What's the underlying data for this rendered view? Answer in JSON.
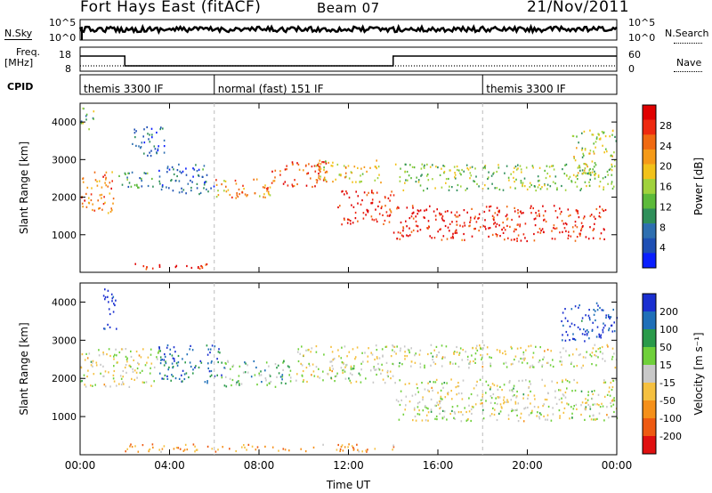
{
  "header": {
    "station": "Fort Hays East (fitACF)",
    "beam": "Beam 07",
    "date": "21/Nov/2011"
  },
  "strips": {
    "nsky_label": "N.Sky",
    "nsky_ticks": [
      "10^5",
      "10^0"
    ],
    "nsearch_label": "N.Search",
    "freq_label_1": "Freq.",
    "freq_label_2": "[MHz]",
    "freq_ticks": [
      "18",
      "8"
    ],
    "nave_label": "Nave",
    "nave_ticks": [
      "60",
      "0"
    ],
    "cpid_label": "CPID",
    "cpid_segments": [
      {
        "label": "themis 3300 IF",
        "start": 0,
        "end": 6
      },
      {
        "label": "normal (fast) 151 IF",
        "start": 6,
        "end": 18
      },
      {
        "label": "themis 3300 IF",
        "start": 18,
        "end": 24
      }
    ]
  },
  "chart_data": [
    {
      "type": "heatmap",
      "name": "power",
      "xlabel": "Time UT",
      "ylabel": "Slant Range [km]",
      "xlim": [
        0,
        24
      ],
      "ylim": [
        0,
        4500
      ],
      "x_ticks": [
        "00:00",
        "04:00",
        "08:00",
        "12:00",
        "16:00",
        "20:00",
        "00:00"
      ],
      "y_ticks": [
        1000,
        2000,
        3000,
        4000
      ],
      "colorbar": {
        "label": "Power [dB]",
        "ticks": [
          "4",
          "8",
          "12",
          "16",
          "20",
          "24",
          "28"
        ],
        "colors": [
          "#0a1fff",
          "#1e4fb4",
          "#2e6fb0",
          "#2f8f5a",
          "#5cba3a",
          "#a0d23c",
          "#f2c21a",
          "#f59a18",
          "#f06a12",
          "#ee2a10",
          "#e00000"
        ]
      },
      "regions": [
        {
          "t0": 0.0,
          "t1": 1.5,
          "r0": 1600,
          "r1": 2700,
          "level": 0.75
        },
        {
          "t0": 0.0,
          "t1": 0.6,
          "r0": 3800,
          "r1": 4400,
          "level": 0.4
        },
        {
          "t0": 1.7,
          "t1": 3.3,
          "r0": 2200,
          "r1": 2700,
          "level": 0.3
        },
        {
          "t0": 2.3,
          "t1": 3.8,
          "r0": 3100,
          "r1": 3900,
          "level": 0.2
        },
        {
          "t0": 3.5,
          "t1": 6.0,
          "r0": 2100,
          "r1": 2900,
          "level": 0.2
        },
        {
          "t0": 6.0,
          "t1": 8.5,
          "r0": 1900,
          "r1": 2500,
          "level": 0.7
        },
        {
          "t0": 8.5,
          "t1": 11.0,
          "r0": 2300,
          "r1": 3000,
          "level": 0.85
        },
        {
          "t0": 10.5,
          "t1": 13.5,
          "r0": 2400,
          "r1": 3000,
          "level": 0.6
        },
        {
          "t0": 11.5,
          "t1": 14.0,
          "r0": 1300,
          "r1": 2200,
          "level": 0.9
        },
        {
          "t0": 14.0,
          "t1": 23.5,
          "r0": 850,
          "r1": 1800,
          "level": 0.9
        },
        {
          "t0": 14.0,
          "t1": 24.0,
          "r0": 2200,
          "r1": 2900,
          "level": 0.45
        },
        {
          "t0": 22.0,
          "t1": 24.0,
          "r0": 2600,
          "r1": 3800,
          "level": 0.5
        },
        {
          "t0": 2.0,
          "t1": 6.0,
          "r0": 100,
          "r1": 250,
          "level": 0.9
        }
      ]
    },
    {
      "type": "heatmap",
      "name": "velocity",
      "xlabel": "Time UT",
      "ylabel": "Slant Range [km]",
      "xlim": [
        0,
        24
      ],
      "ylim": [
        0,
        4500
      ],
      "x_ticks": [
        "00:00",
        "04:00",
        "08:00",
        "12:00",
        "16:00",
        "20:00",
        "00:00"
      ],
      "y_ticks": [
        1000,
        2000,
        3000,
        4000
      ],
      "colorbar": {
        "label": "Velocity [m s^-1]",
        "ticks": [
          "200",
          "100",
          "50",
          "15",
          "-15",
          "-50",
          "-100",
          "-200"
        ],
        "colors": [
          "#1a2fd0",
          "#1f6fb8",
          "#2a9a4a",
          "#6fd03a",
          "#c8c8c8",
          "#f5c040",
          "#f5901a",
          "#ee5a12",
          "#e01010"
        ]
      },
      "regions": [
        {
          "t0": 0.0,
          "t1": 3.5,
          "r0": 1800,
          "r1": 2800,
          "level": 0.5
        },
        {
          "t0": 1.0,
          "t1": 1.6,
          "r0": 3300,
          "r1": 4400,
          "level": 0.0
        },
        {
          "t0": 3.5,
          "t1": 6.3,
          "r0": 1900,
          "r1": 2900,
          "level": 0.15
        },
        {
          "t0": 6.3,
          "t1": 9.5,
          "r0": 1800,
          "r1": 2500,
          "level": 0.35
        },
        {
          "t0": 9.5,
          "t1": 14.0,
          "r0": 1900,
          "r1": 2900,
          "level": 0.5
        },
        {
          "t0": 14.0,
          "t1": 24.0,
          "r0": 900,
          "r1": 2000,
          "level": 0.5
        },
        {
          "t0": 14.0,
          "t1": 24.0,
          "r0": 2300,
          "r1": 2900,
          "level": 0.5
        },
        {
          "t0": 21.5,
          "t1": 24.0,
          "r0": 3000,
          "r1": 4000,
          "level": 0.05
        },
        {
          "t0": 2.0,
          "t1": 14.0,
          "r0": 100,
          "r1": 300,
          "level": 0.7
        }
      ]
    }
  ]
}
